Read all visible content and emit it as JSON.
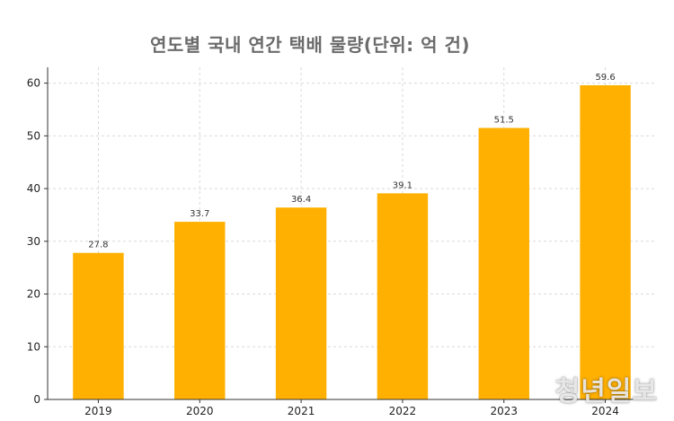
{
  "chart_data": {
    "type": "bar",
    "title": "연도별 국내 연간 택배 물량(단위: 억 건)",
    "categories": [
      "2019",
      "2020",
      "2021",
      "2022",
      "2023",
      "2024"
    ],
    "values": [
      27.8,
      33.7,
      36.4,
      39.1,
      51.5,
      59.6
    ],
    "value_labels": [
      "27.8",
      "33.7",
      "36.4",
      "39.1",
      "51.5",
      "59.6"
    ],
    "ylim": [
      0,
      63
    ],
    "yticks": [
      0,
      10,
      20,
      30,
      40,
      50,
      60
    ],
    "xlabel": "",
    "ylabel": "",
    "grid": true,
    "bar_color": "#FFB000"
  },
  "watermark": "청년일보"
}
